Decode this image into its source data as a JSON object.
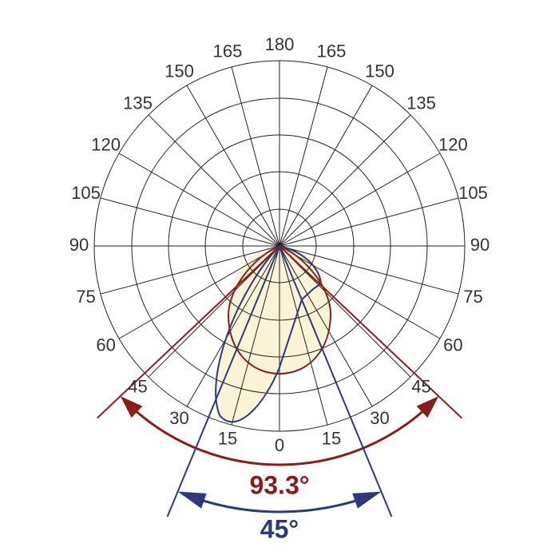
{
  "diagram": {
    "angle_labels_left": [
      "0",
      "15",
      "30",
      "45",
      "60",
      "75",
      "90",
      "105",
      "120",
      "135",
      "150",
      "165",
      "180"
    ],
    "angle_labels_right": [
      "15",
      "30",
      "45",
      "60",
      "75",
      "90",
      "105",
      "120",
      "135",
      "150",
      "165"
    ],
    "beam_angles": [
      {
        "value": 93.3,
        "label": "93.3°",
        "color": "#8b1c1c"
      },
      {
        "value": 45,
        "label": "45°",
        "color": "#2b3a7c"
      }
    ]
  }
}
